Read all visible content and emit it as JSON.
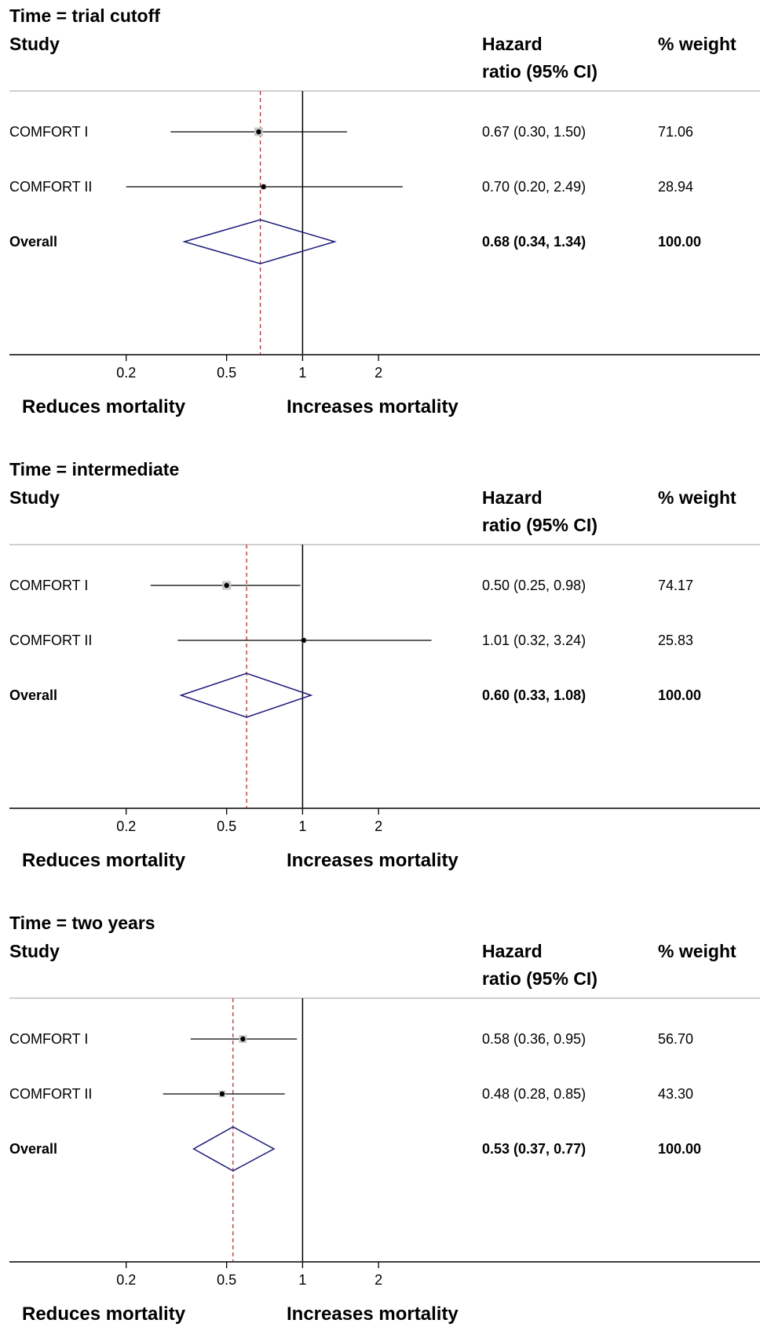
{
  "chart_data": {
    "type": "forest",
    "headers": {
      "study": "Study",
      "effect_line1": "Hazard",
      "effect_line2": "ratio (95% CI)",
      "weight": "% weight"
    },
    "x_scale": "log",
    "x_ticks": [
      0.2,
      0.5,
      1,
      2
    ],
    "x_tick_labels": [
      "0.2",
      "0.5",
      "1",
      "2"
    ],
    "null_value": 1,
    "direction_labels": {
      "left": "Reduces mortality",
      "right": "Increases mortality"
    },
    "colors": {
      "ci_line": "#000000",
      "marker": "#000000",
      "weight_box": "#c8c8c8",
      "diamond": "#1a1a7a",
      "overall_line": "#b03030",
      "null_line": "#000000",
      "separator": "#bfbfbf"
    },
    "panels": [
      {
        "title": "Time = trial cutoff",
        "studies": [
          {
            "label": "COMFORT I",
            "hr": 0.67,
            "lo": 0.3,
            "hi": 1.5,
            "ci_text": "0.67 (0.30, 1.50)",
            "weight_text": "71.06",
            "weight": 71.06
          },
          {
            "label": "COMFORT II",
            "hr": 0.7,
            "lo": 0.2,
            "hi": 2.49,
            "ci_text": "0.70 (0.20, 2.49)",
            "weight_text": "28.94",
            "weight": 28.94
          }
        ],
        "overall": {
          "label": "Overall",
          "hr": 0.68,
          "lo": 0.34,
          "hi": 1.34,
          "ci_text": "0.68 (0.34, 1.34)",
          "weight_text": "100.00"
        }
      },
      {
        "title": "Time = intermediate",
        "studies": [
          {
            "label": "COMFORT I",
            "hr": 0.5,
            "lo": 0.25,
            "hi": 0.98,
            "ci_text": "0.50 (0.25, 0.98)",
            "weight_text": "74.17",
            "weight": 74.17
          },
          {
            "label": "COMFORT II",
            "hr": 1.01,
            "lo": 0.32,
            "hi": 3.24,
            "ci_text": "1.01 (0.32, 3.24)",
            "weight_text": "25.83",
            "weight": 25.83
          }
        ],
        "overall": {
          "label": "Overall",
          "hr": 0.6,
          "lo": 0.33,
          "hi": 1.08,
          "ci_text": "0.60 (0.33, 1.08)",
          "weight_text": "100.00"
        }
      },
      {
        "title": "Time = two years",
        "studies": [
          {
            "label": "COMFORT I",
            "hr": 0.58,
            "lo": 0.36,
            "hi": 0.95,
            "ci_text": "0.58 (0.36, 0.95)",
            "weight_text": "56.70",
            "weight": 56.7
          },
          {
            "label": "COMFORT II",
            "hr": 0.48,
            "lo": 0.28,
            "hi": 0.85,
            "ci_text": "0.48 (0.28, 0.85)",
            "weight_text": "43.30",
            "weight": 43.3
          }
        ],
        "overall": {
          "label": "Overall",
          "hr": 0.53,
          "lo": 0.37,
          "hi": 0.77,
          "ci_text": "0.53 (0.37, 0.77)",
          "weight_text": "100.00"
        }
      }
    ]
  }
}
